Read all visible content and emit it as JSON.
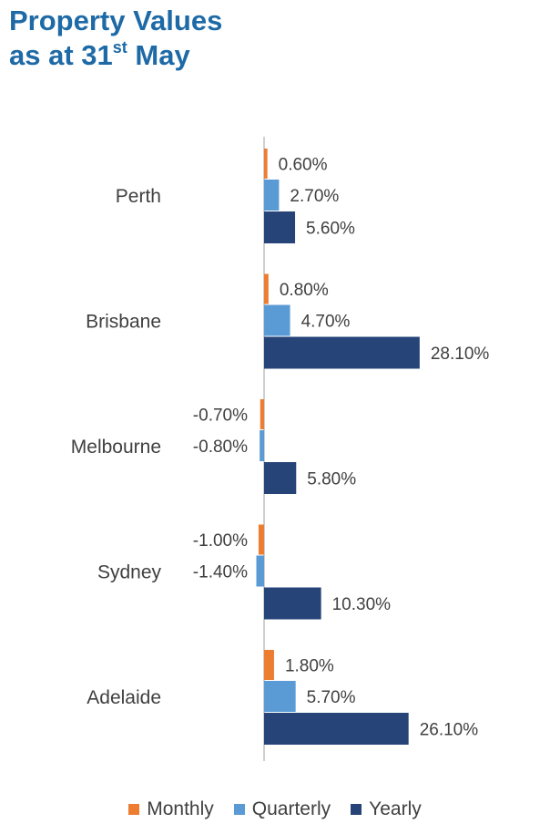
{
  "title": {
    "line1": "Property Values",
    "line2_prefix": "as at 31",
    "line2_sup": "st",
    "line2_suffix": " May"
  },
  "colors": {
    "Monthly": "#ed7d31",
    "Quarterly": "#5b9bd5",
    "Yearly": "#264478",
    "title": "#1e6aa6",
    "axis": "#bfbfbf"
  },
  "chart_data": {
    "type": "bar",
    "orientation": "horizontal",
    "title": "Property Values as at 31st May",
    "categories": [
      "Perth",
      "Brisbane",
      "Melbourne",
      "Sydney",
      "Adelaide"
    ],
    "series": [
      {
        "name": "Monthly",
        "values": [
          0.6,
          0.8,
          -0.7,
          -1.0,
          1.8
        ],
        "labels": [
          "0.60%",
          "0.80%",
          "-0.70%",
          "-1.00%",
          "1.80%"
        ]
      },
      {
        "name": "Quarterly",
        "values": [
          2.7,
          4.7,
          -0.8,
          -1.4,
          5.7
        ],
        "labels": [
          "2.70%",
          "4.70%",
          "-0.80%",
          "-1.40%",
          "5.70%"
        ]
      },
      {
        "name": "Yearly",
        "values": [
          5.6,
          28.1,
          5.8,
          10.3,
          26.1
        ],
        "labels": [
          "5.60%",
          "28.10%",
          "5.80%",
          "10.30%",
          "26.10%"
        ]
      }
    ],
    "legend_position": "bottom",
    "grid": false
  }
}
